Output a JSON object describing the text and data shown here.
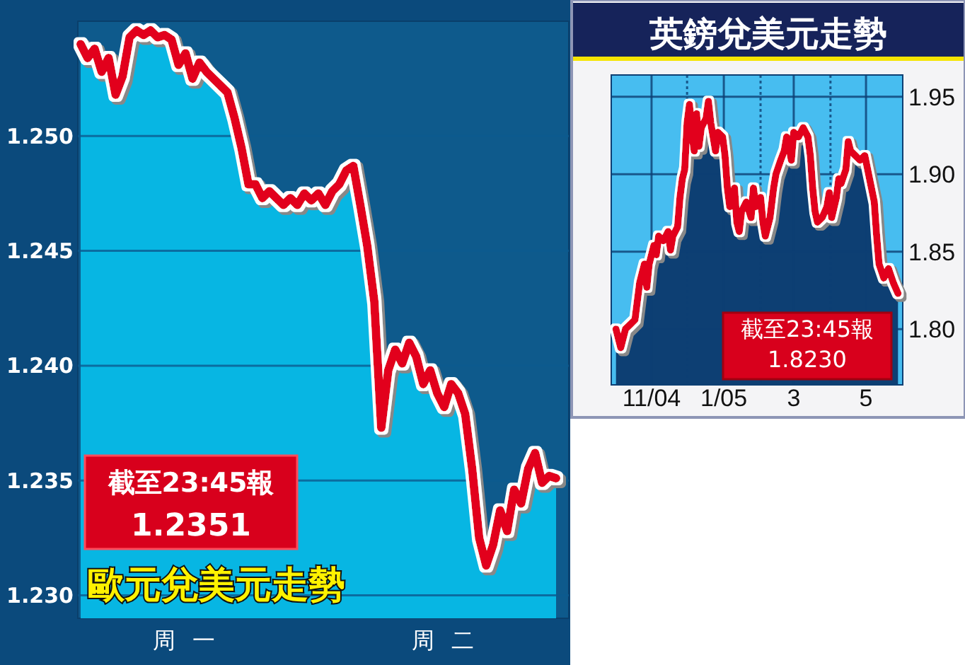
{
  "chart_data": [
    {
      "type": "area",
      "title": "歐元兌美元走勢",
      "annotations": [
        "截至23:45報",
        "1.2351"
      ],
      "categories": [
        null,
        null,
        null,
        null,
        null,
        null,
        null,
        null,
        null,
        null,
        null,
        null,
        null,
        null,
        null,
        null,
        "周一",
        null,
        null,
        null,
        null,
        null,
        null,
        null,
        null,
        null,
        null,
        null,
        null,
        null,
        null,
        null,
        null,
        null,
        null,
        null,
        null,
        null,
        null,
        null,
        null,
        null,
        null,
        null,
        null,
        null,
        null,
        null,
        null,
        null,
        null,
        null,
        null,
        "周二",
        null,
        null,
        null,
        null,
        null,
        null,
        null,
        null,
        null,
        null,
        null,
        null,
        null,
        null,
        null
      ],
      "series": [
        {
          "color": "#07b6e3",
          "values": [
            1.254,
            1.2534,
            1.2538,
            1.2528,
            1.2534,
            1.2518,
            1.2526,
            1.2543,
            1.2546,
            1.2544,
            1.2546,
            1.2543,
            1.2544,
            1.2542,
            1.2531,
            1.2536,
            1.2525,
            1.2532,
            1.2528,
            1.2525,
            1.2522,
            1.2519,
            1.2508,
            1.2495,
            1.2479,
            1.2479,
            1.2473,
            1.2476,
            1.2473,
            1.247,
            1.2473,
            1.247,
            1.2475,
            1.2472,
            1.2475,
            1.247,
            1.2476,
            1.2479,
            1.2485,
            1.2487,
            1.247,
            1.2452,
            1.2428,
            1.2373,
            1.2398,
            1.2407,
            1.2401,
            1.241,
            1.2404,
            1.2392,
            1.2398,
            1.2388,
            1.2382,
            1.2392,
            1.2388,
            1.2379,
            1.2355,
            1.2325,
            1.2313,
            1.2322,
            1.2337,
            1.2328,
            1.2346,
            1.234,
            1.2355,
            1.2362,
            1.2349,
            1.2352,
            1.2351
          ]
        },
        {
          "type": "line",
          "color": "#e2001a",
          "values": [
            1.254,
            1.2534,
            1.2538,
            1.2528,
            1.2534,
            1.2518,
            1.2526,
            1.2543,
            1.2546,
            1.2544,
            1.2546,
            1.2543,
            1.2544,
            1.2542,
            1.2531,
            1.2536,
            1.2525,
            1.2532,
            1.2528,
            1.2525,
            1.2522,
            1.2519,
            1.2508,
            1.2495,
            1.2479,
            1.2479,
            1.2473,
            1.2476,
            1.2473,
            1.247,
            1.2473,
            1.247,
            1.2475,
            1.2472,
            1.2475,
            1.247,
            1.2476,
            1.2479,
            1.2485,
            1.2487,
            1.247,
            1.2452,
            1.2428,
            1.2373,
            1.2398,
            1.2407,
            1.2401,
            1.241,
            1.2404,
            1.2392,
            1.2398,
            1.2388,
            1.2382,
            1.2392,
            1.2388,
            1.2379,
            1.2355,
            1.2325,
            1.2313,
            1.2322,
            1.2337,
            1.2328,
            1.2346,
            1.234,
            1.2355,
            1.2362,
            1.2349,
            1.2352,
            1.2351
          ]
        }
      ],
      "ylim": [
        1.229,
        1.255
      ],
      "yticks": [
        {
          "value": 1.23,
          "label": "1.230"
        },
        1.235,
        {
          "value": 1.24,
          "label": "1.240"
        },
        1.245,
        {
          "value": 1.25,
          "label": "1.250"
        }
      ],
      "grid": "y"
    },
    {
      "type": "area",
      "title": "英鎊兌美元走勢",
      "annotations": [
        "截至23:45報",
        "1.8230"
      ],
      "x": [
        "2004-10-02",
        "2004-10-06",
        "2004-10-10",
        "2004-10-14",
        "2004-10-18",
        "2004-10-20",
        "2004-10-22",
        "2004-10-24",
        "2004-10-26",
        "2004-10-28",
        "2004-10-30",
        "2004-11-03",
        "2004-11-05",
        "2004-11-07",
        "2004-11-11",
        "2004-11-15",
        "2004-11-17",
        "2004-11-19",
        "2004-11-23",
        "2004-11-25",
        "2004-11-27",
        "2004-11-29",
        "2004-12-01",
        "2004-12-03",
        "2004-12-05",
        "2004-12-07",
        "2004-12-09",
        "2004-12-11",
        "2004-12-13",
        "2004-12-17",
        "2004-12-19",
        "2004-12-21",
        "2004-12-25",
        "2004-12-27",
        "2004-12-31",
        "2005-01-02",
        "2005-01-04",
        "2005-01-06",
        "2005-01-10",
        "2005-01-12",
        "2005-01-14",
        "2005-01-16",
        "2005-01-20",
        "2005-01-24",
        "2005-01-26",
        "2005-01-28",
        "2005-02-01",
        "2005-02-03",
        "2005-02-05",
        "2005-02-09",
        "2005-02-12",
        "2005-02-14",
        "2005-02-18",
        "2005-02-21",
        "2005-02-23",
        "2005-02-25",
        "2005-02-27",
        "2005-03-01",
        "2005-03-05",
        "2005-03-09",
        "2005-03-13",
        "2005-03-15",
        "2005-03-17",
        "2005-03-19",
        "2005-03-21",
        "2005-03-25",
        "2005-03-29",
        "2005-03-31",
        "2005-04-02",
        "2005-04-06",
        "2005-04-08",
        "2005-04-10",
        "2005-04-14",
        "2005-04-16",
        "2005-04-18",
        "2005-04-22",
        "2005-04-26",
        "2005-04-30",
        "2005-05-04",
        "2005-05-08",
        "2005-05-10",
        "2005-05-12",
        "2005-05-16",
        "2005-05-20",
        "2005-05-24",
        "2005-05-28"
      ],
      "series": [
        {
          "color": "#0d3f73",
          "values": [
            1.8,
            1.788,
            1.8,
            1.803,
            1.806,
            1.818,
            1.83,
            1.836,
            1.842,
            1.827,
            1.842,
            1.854,
            1.848,
            1.86,
            1.857,
            1.863,
            1.851,
            1.86,
            1.866,
            1.885,
            1.897,
            1.903,
            1.933,
            1.945,
            1.927,
            1.915,
            1.939,
            1.918,
            1.93,
            1.936,
            1.947,
            1.933,
            1.915,
            1.927,
            1.924,
            1.912,
            1.891,
            1.879,
            1.891,
            1.869,
            1.863,
            1.876,
            1.882,
            1.872,
            1.891,
            1.879,
            1.885,
            1.869,
            1.86,
            1.872,
            1.891,
            1.9,
            1.909,
            1.915,
            1.924,
            1.918,
            1.909,
            1.927,
            1.924,
            1.93,
            1.924,
            1.912,
            1.891,
            1.876,
            1.869,
            1.872,
            1.879,
            1.888,
            1.872,
            1.885,
            1.897,
            1.894,
            1.903,
            1.921,
            1.915,
            1.912,
            1.909,
            1.912,
            1.897,
            1.882,
            1.86,
            1.842,
            1.833,
            1.839,
            1.83,
            1.823
          ]
        },
        {
          "type": "line",
          "color": "#e2001a",
          "values": [
            1.8,
            1.788,
            1.8,
            1.803,
            1.806,
            1.818,
            1.83,
            1.836,
            1.842,
            1.827,
            1.842,
            1.854,
            1.848,
            1.86,
            1.857,
            1.863,
            1.851,
            1.86,
            1.866,
            1.885,
            1.897,
            1.903,
            1.933,
            1.945,
            1.927,
            1.915,
            1.939,
            1.918,
            1.93,
            1.936,
            1.947,
            1.933,
            1.915,
            1.927,
            1.924,
            1.912,
            1.891,
            1.879,
            1.891,
            1.869,
            1.863,
            1.876,
            1.882,
            1.872,
            1.891,
            1.879,
            1.885,
            1.869,
            1.86,
            1.872,
            1.891,
            1.9,
            1.909,
            1.915,
            1.924,
            1.918,
            1.909,
            1.927,
            1.924,
            1.93,
            1.924,
            1.912,
            1.891,
            1.876,
            1.869,
            1.872,
            1.879,
            1.888,
            1.872,
            1.885,
            1.897,
            1.894,
            1.903,
            1.921,
            1.915,
            1.912,
            1.909,
            1.912,
            1.897,
            1.882,
            1.86,
            1.842,
            1.833,
            1.839,
            1.83,
            1.823
          ]
        }
      ],
      "xlim": [
        "2004-09-28",
        "2005-06-01"
      ],
      "xticks": [
        {
          "value": "2004-11-01",
          "label": "11/04"
        },
        {
          "value": "2004-12-01",
          "label": null
        },
        {
          "value": "2005-01-01",
          "label": "1/05"
        },
        {
          "value": "2005-02-01",
          "label": null
        },
        {
          "value": "2005-03-01",
          "label": "3"
        },
        {
          "value": "2005-04-01",
          "label": null
        },
        {
          "value": "2005-05-01",
          "label": "5"
        }
      ],
      "ylim": [
        1.764,
        1.964
      ],
      "yticks": [
        {
          "value": 1.8,
          "label": "1.80"
        },
        1.85,
        {
          "value": 1.9,
          "label": "1.90"
        },
        1.95
      ],
      "grid": true
    }
  ]
}
